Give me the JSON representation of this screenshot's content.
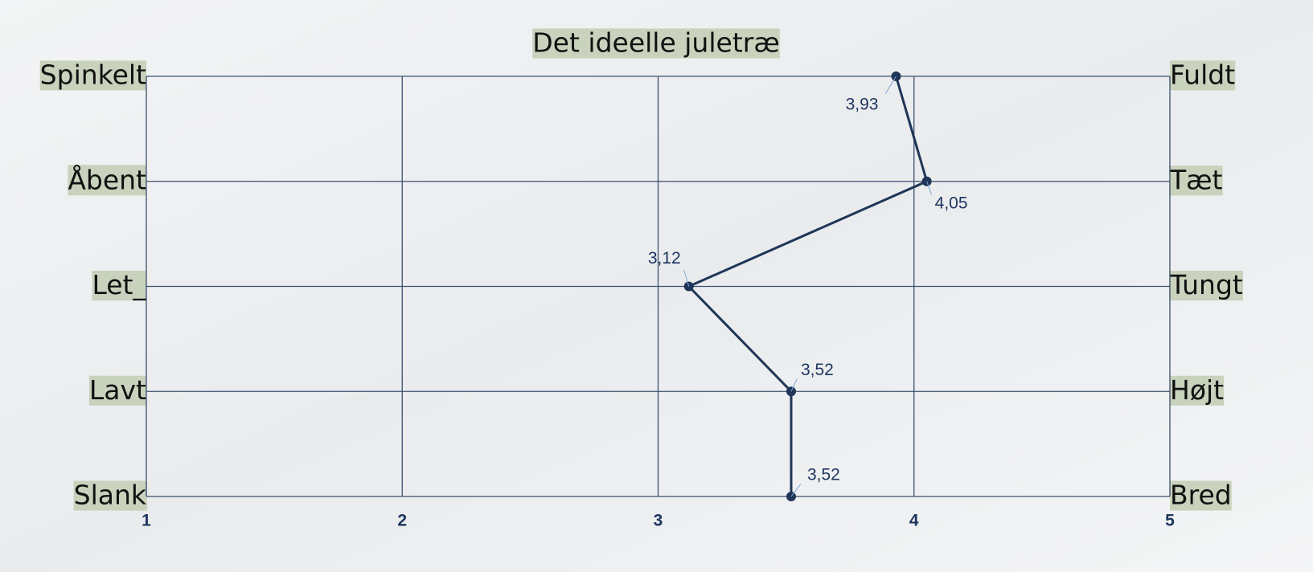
{
  "chart_data": {
    "type": "line",
    "title": "Det ideelle juletræ",
    "categories": [
      "Spinkelt",
      "Åbent",
      "Let_",
      "Lavt",
      "Slank"
    ],
    "right_categories": [
      "Fuldt",
      "Tæt",
      "Tungt",
      "Højt",
      "Bred"
    ],
    "values": [
      3.93,
      4.05,
      3.12,
      3.52,
      3.52
    ],
    "value_labels": [
      "3,93",
      "4,05",
      "3,12",
      "3,52",
      "3,52"
    ],
    "color": "#1f3557",
    "xlim": [
      1,
      5
    ],
    "xticks": [
      1,
      2,
      3,
      4,
      5
    ],
    "grid": true
  }
}
